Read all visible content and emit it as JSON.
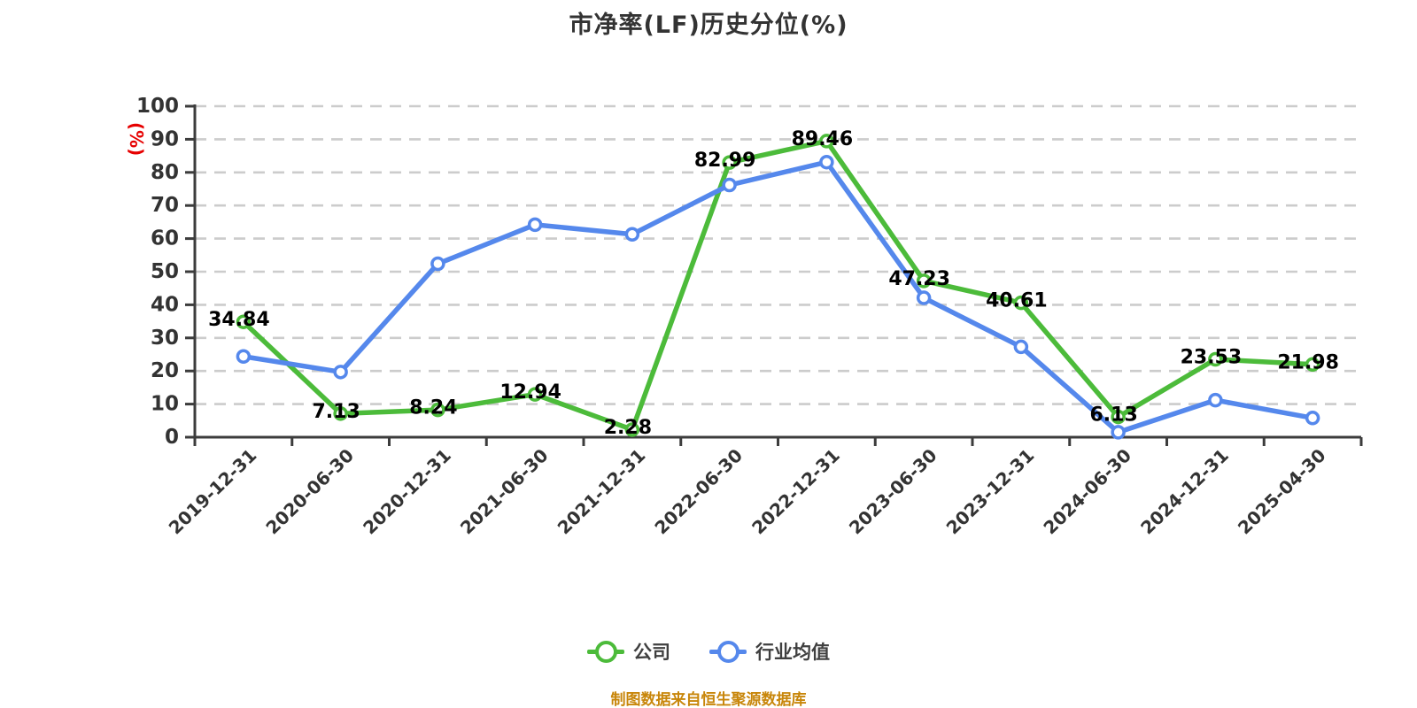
{
  "title": "市净率(LF)历史分位(%)",
  "footer": {
    "source_note": "制图数据来自恒生聚源数据库"
  },
  "colors": {
    "background": "#ffffff",
    "title_text": "#333333",
    "axis_line": "#3c3c3c",
    "axis_tick_label": "#333333",
    "gridline": "#cccccc",
    "data_label": "#000000",
    "y_axis_name": "#e60000",
    "source_note": "#c8860a",
    "company_series": "#4cbb3a",
    "industry_series": "#5588ec",
    "marker_fill": "#ffffff"
  },
  "chart_data": {
    "type": "line",
    "title": "市净率(LF)历史分位(%)",
    "xlabel": "",
    "ylabel": "(%)",
    "ylim": [
      0,
      100
    ],
    "ytick_step": 10,
    "grid": "horizontal-dashed",
    "legend_position": "bottom-center",
    "categories": [
      "2019-12-31",
      "2020-06-30",
      "2020-12-31",
      "2021-06-30",
      "2021-12-31",
      "2022-06-30",
      "2022-12-31",
      "2023-06-30",
      "2023-12-31",
      "2024-06-30",
      "2024-12-31",
      "2025-04-30"
    ],
    "series": [
      {
        "name": "公司",
        "color": "#4cbb3a",
        "show_labels": true,
        "values": [
          34.84,
          7.13,
          8.24,
          12.94,
          2.28,
          82.99,
          89.46,
          47.23,
          40.61,
          6.13,
          23.53,
          21.98
        ]
      },
      {
        "name": "行业均值",
        "color": "#5588ec",
        "show_labels": false,
        "values_estimated": true,
        "values": [
          24.4,
          19.7,
          52.4,
          64.2,
          61.3,
          76.2,
          83.1,
          42.1,
          27.3,
          1.5,
          11.2,
          5.8
        ]
      }
    ]
  }
}
